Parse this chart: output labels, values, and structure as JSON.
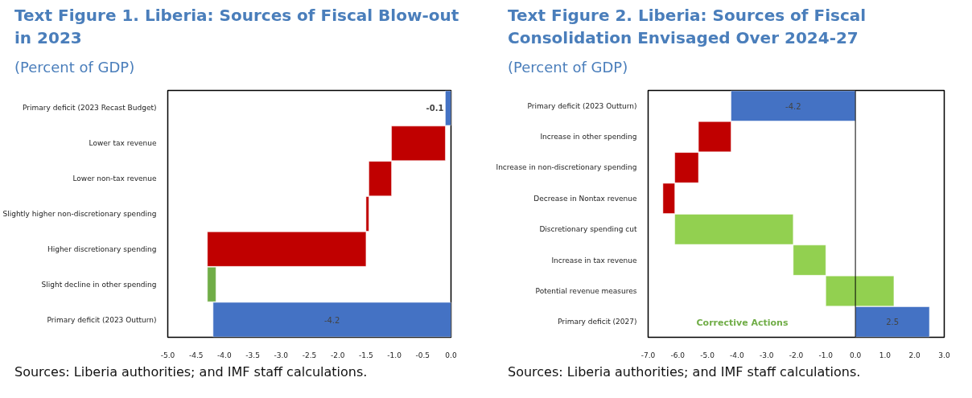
{
  "chart_data": [
    {
      "type": "bar",
      "orientation": "horizontal",
      "title": "Text Figure 1. Liberia: Sources of Fiscal Blow-out in 2023",
      "subtitle": "(Percent of GDP)",
      "categories": [
        "Primary deficit (2023 Recast Budget)",
        "Lower tax revenue",
        "Lower non-tax revenue",
        "Slightly higher non-discretionary spending",
        "Higher discretionary spending",
        "Slight decline in other spending",
        "Primary deficit (2023 Outturn)"
      ],
      "values": [
        -0.1,
        -0.95,
        -0.4,
        -0.05,
        -2.8,
        0.15,
        -4.2
      ],
      "base": [
        0,
        -0.1,
        -1.05,
        -1.45,
        -1.5,
        -4.3,
        0
      ],
      "colors": [
        "#4472c4",
        "#c00000",
        "#c00000",
        "#c00000",
        "#c00000",
        "#70ad47",
        "#4472c4"
      ],
      "value_labels": [
        "-0.1",
        null,
        null,
        null,
        null,
        null,
        "-4.2"
      ],
      "xlim": [
        -5.0,
        0.0
      ],
      "xticks": [
        {
          "value": -5.0,
          "label": "-5.0"
        },
        {
          "value": -4.5,
          "label": "-4.5"
        },
        {
          "value": -4.0,
          "label": "-4.0"
        },
        {
          "value": -3.5,
          "label": "-3.5"
        },
        {
          "value": -3.0,
          "label": "-3.0"
        },
        {
          "value": -2.5,
          "label": "-2.5"
        },
        {
          "value": -2.0,
          "label": "-2.0"
        },
        {
          "value": -1.5,
          "label": "-1.5"
        },
        {
          "value": -1.0,
          "label": "-1.0"
        },
        {
          "value": -0.5,
          "label": "-0.5"
        },
        {
          "value": 0.0,
          "label": "0.0"
        }
      ],
      "annotations": [
        "Sources: Liberia authorities; and IMF staff calculations."
      ]
    },
    {
      "type": "bar",
      "orientation": "horizontal",
      "title": "Text Figure 2. Liberia: Sources of Fiscal Consolidation Envisaged Over 2024-27",
      "subtitle": "(Percent of GDP)",
      "categories": [
        "Primary deficit (2023 Outturn)",
        "Increase in other spending",
        "Increase in non-discretionary spending",
        "Decrease in Nontax revenue",
        "Discretionary spending cut",
        "Increase in tax revenue",
        "Potential revenue measures",
        "Primary deficit (2027)"
      ],
      "values": [
        -4.2,
        -1.1,
        -0.8,
        -0.4,
        4.0,
        1.1,
        2.3,
        2.5
      ],
      "base": [
        0,
        -4.2,
        -5.3,
        -6.1,
        -6.1,
        -2.1,
        -1.0,
        0
      ],
      "colors": [
        "#4472c4",
        "#c00000",
        "#c00000",
        "#c00000",
        "#92d050",
        "#92d050",
        "#92d050",
        "#4472c4"
      ],
      "value_labels": [
        "-4.2",
        null,
        null,
        null,
        null,
        null,
        null,
        "2.5"
      ],
      "xlim": [
        -7.0,
        3.0
      ],
      "xticks": [
        {
          "value": -7.0,
          "label": "-7.0"
        },
        {
          "value": -6.0,
          "label": "-6.0"
        },
        {
          "value": -5.0,
          "label": "-5.0"
        },
        {
          "value": -4.0,
          "label": "-4.0"
        },
        {
          "value": -3.0,
          "label": "-3.0"
        },
        {
          "value": -2.0,
          "label": "-2.0"
        },
        {
          "value": -1.0,
          "label": "-1.0"
        },
        {
          "value": 0.0,
          "label": "0.0"
        },
        {
          "value": 1.0,
          "label": "1.0"
        },
        {
          "value": 2.0,
          "label": "2.0"
        },
        {
          "value": 3.0,
          "label": "3.0"
        }
      ],
      "ref_lines": [
        {
          "axis": "x",
          "value": 0,
          "color": "#000000"
        }
      ],
      "annotations": [
        "Corrective Actions",
        "Sources: Liberia authorities; and IMF staff calculations."
      ]
    }
  ]
}
